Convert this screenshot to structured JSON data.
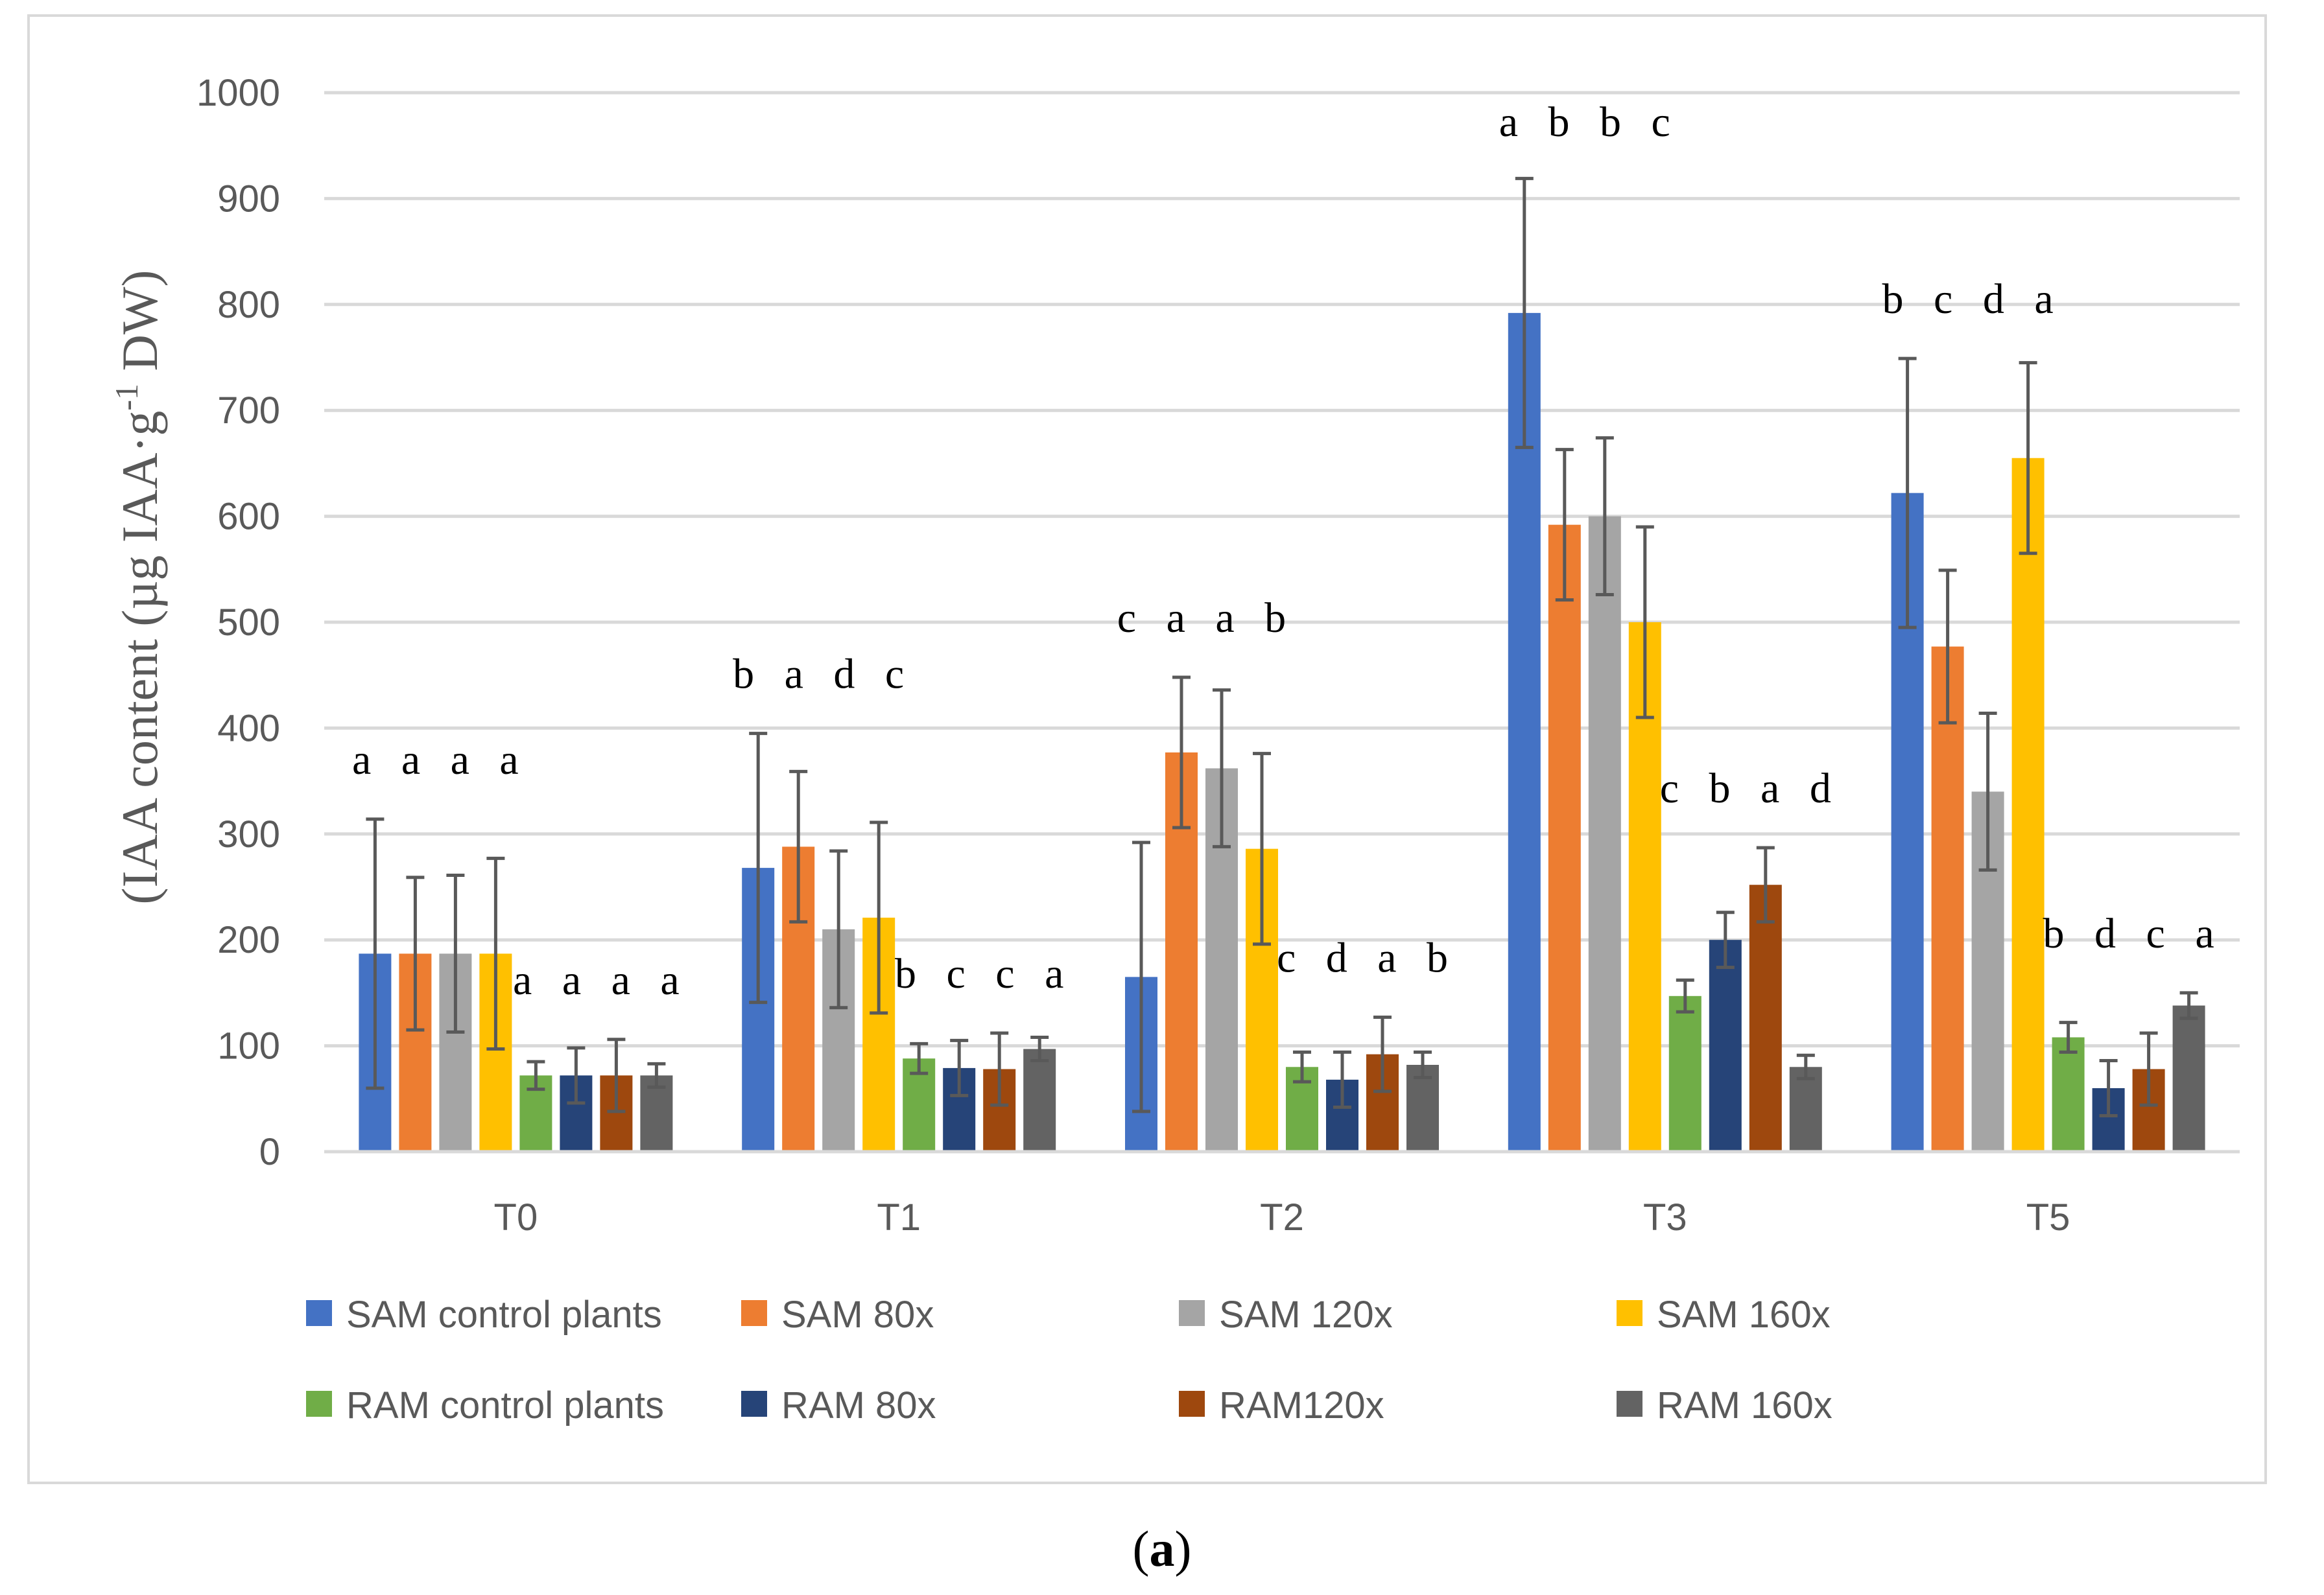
{
  "chart_data": {
    "type": "bar",
    "ylabel": "(IAA content (µg IAA·g",
    "ylabel_sup": "-1",
    "ylabel_tail": " DW)",
    "ylim": [
      0,
      1000
    ],
    "yticks": [
      "0",
      "100",
      "200",
      "300",
      "400",
      "500",
      "600",
      "700",
      "800",
      "900",
      "1000"
    ],
    "grid": true,
    "legend_position": "bottom",
    "categories": [
      "T0",
      "T1",
      "T2",
      "T3",
      "T5"
    ],
    "series": [
      {
        "name": "SAM control plants",
        "color": "#4472C4",
        "values": [
          187,
          268,
          165,
          792,
          622
        ],
        "errors": [
          127,
          127,
          127,
          127,
          127
        ]
      },
      {
        "name": "SAM 80x",
        "color": "#ED7D31",
        "values": [
          187,
          288,
          377,
          592,
          477
        ],
        "errors": [
          72,
          71,
          71,
          71,
          72
        ]
      },
      {
        "name": "SAM 120x",
        "color": "#A5A5A5",
        "values": [
          187,
          210,
          362,
          600,
          340
        ],
        "errors": [
          74,
          74,
          74,
          74,
          74
        ]
      },
      {
        "name": "SAM 160x",
        "color": "#FFC000",
        "values": [
          187,
          221,
          286,
          500,
          655
        ],
        "errors": [
          90,
          90,
          90,
          90,
          90
        ]
      },
      {
        "name": "RAM control plants",
        "color": "#70AD47",
        "values": [
          72,
          88,
          80,
          147,
          108
        ],
        "errors": [
          13,
          14,
          14,
          15,
          14
        ]
      },
      {
        "name": "RAM 80x",
        "color": "#264478",
        "values": [
          72,
          79,
          68,
          200,
          60
        ],
        "errors": [
          26,
          26,
          26,
          26,
          26
        ]
      },
      {
        "name": "RAM120x",
        "color": "#9E480E",
        "values": [
          72,
          78,
          92,
          252,
          78
        ],
        "errors": [
          34,
          34,
          35,
          35,
          34
        ]
      },
      {
        "name": "RAM 160x",
        "color": "#636363",
        "values": [
          72,
          97,
          82,
          80,
          138
        ],
        "errors": [
          11,
          11,
          12,
          11,
          12
        ]
      }
    ],
    "annotations": [
      {
        "category": "T0",
        "group": "SAM",
        "text": "a a a a"
      },
      {
        "category": "T0",
        "group": "RAM",
        "text": "a a a a"
      },
      {
        "category": "T1",
        "group": "SAM",
        "text": "b a d c"
      },
      {
        "category": "T1",
        "group": "RAM",
        "text": "b c c a"
      },
      {
        "category": "T2",
        "group": "SAM",
        "text": "c a a b"
      },
      {
        "category": "T2",
        "group": "RAM",
        "text": "c d a b"
      },
      {
        "category": "T3",
        "group": "SAM",
        "text": "a b b c"
      },
      {
        "category": "T3",
        "group": "RAM",
        "text": "c b a d"
      },
      {
        "category": "T5",
        "group": "SAM",
        "text": "b c d a"
      },
      {
        "category": "T5",
        "group": "RAM",
        "text": "b d c a"
      }
    ]
  },
  "panel_label": {
    "open": "(",
    "letter": "a",
    "close": ")"
  }
}
